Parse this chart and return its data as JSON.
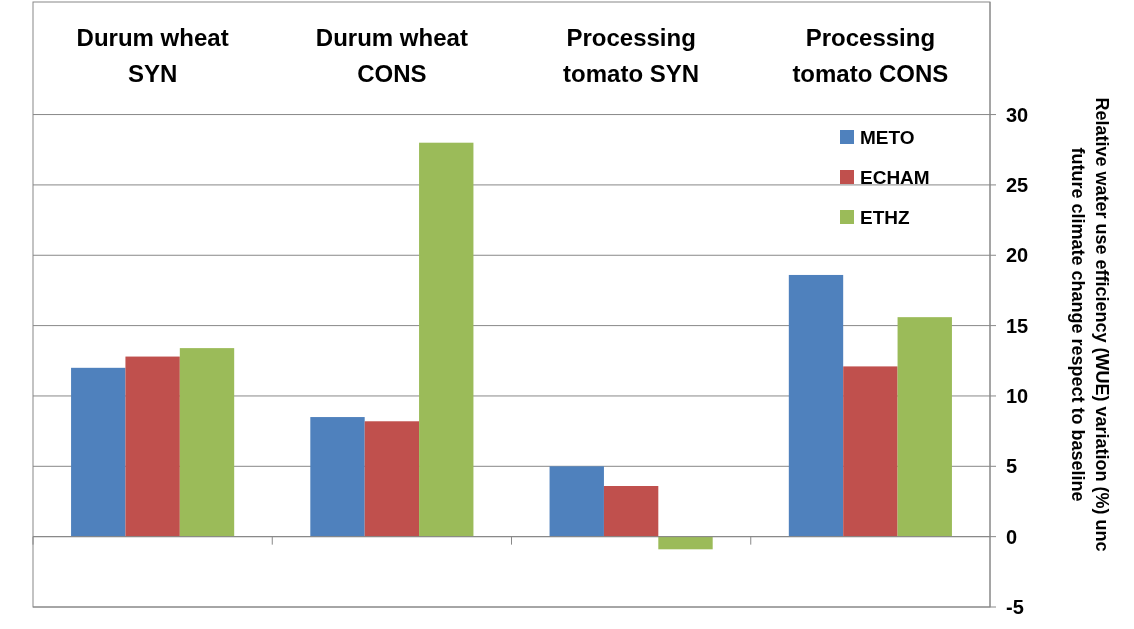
{
  "chart_data": {
    "type": "bar",
    "ylabel": "Relative water use efficiency (WUE) variation (%) unc\nfuture climate change respect to baseline",
    "categories": [
      "Durum wheat\nSYN",
      "Durum wheat\nCONS",
      "Processing\ntomato SYN",
      "Processing\ntomato CONS"
    ],
    "series": [
      {
        "name": "METO",
        "color": "#4f81bd",
        "values": [
          12.0,
          8.5,
          5.0,
          18.6
        ]
      },
      {
        "name": "ECHAM",
        "color": "#c0504d",
        "values": [
          12.8,
          8.2,
          3.6,
          12.1
        ]
      },
      {
        "name": "ETHZ",
        "color": "#9bbb59",
        "values": [
          13.4,
          28.0,
          -0.9,
          15.6
        ]
      }
    ],
    "ylim": [
      -5,
      38
    ],
    "yticks": [
      -5,
      0,
      5,
      10,
      15,
      20,
      25,
      30
    ],
    "grid": "y",
    "legend": "top right"
  }
}
